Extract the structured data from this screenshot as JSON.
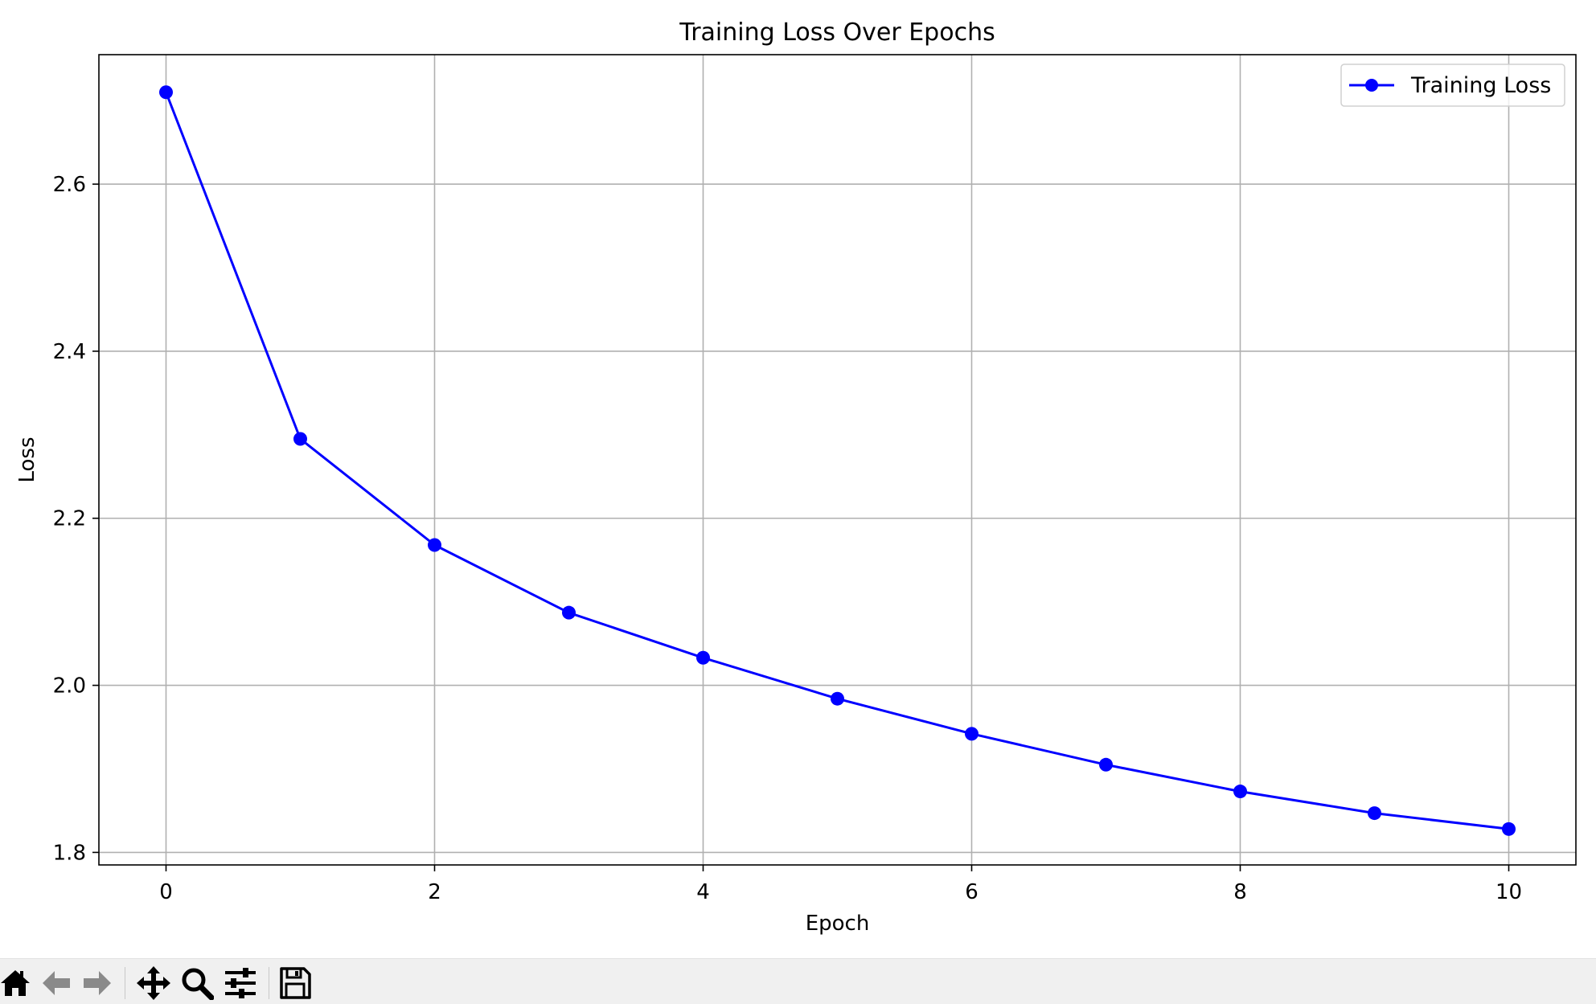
{
  "chart_data": {
    "type": "line",
    "title": "Training Loss Over Epochs",
    "xlabel": "Epoch",
    "ylabel": "Loss",
    "xlim": [
      -0.5,
      10.5
    ],
    "ylim": [
      1.785,
      2.755
    ],
    "xticks": [
      0,
      2,
      4,
      6,
      8,
      10
    ],
    "yticks": [
      1.8,
      2.0,
      2.2,
      2.4,
      2.6
    ],
    "xtick_labels": [
      "0",
      "2",
      "4",
      "6",
      "8",
      "10"
    ],
    "ytick_labels": [
      "1.8",
      "2.0",
      "2.2",
      "2.4",
      "2.6"
    ],
    "grid": true,
    "legend_position": "top-right",
    "series": [
      {
        "name": "Training Loss",
        "color": "#0000ff",
        "marker": "circle",
        "x": [
          0,
          1,
          2,
          3,
          4,
          5,
          6,
          7,
          8,
          9,
          10
        ],
        "y": [
          2.71,
          2.295,
          2.168,
          2.087,
          2.033,
          1.984,
          1.942,
          1.905,
          1.873,
          1.847,
          1.828
        ]
      }
    ]
  },
  "toolbar": {
    "buttons": [
      {
        "name": "home-button",
        "icon": "home-icon"
      },
      {
        "name": "back-button",
        "icon": "arrow-left-icon"
      },
      {
        "name": "forward-button",
        "icon": "arrow-right-icon"
      },
      {
        "name": "pan-button",
        "icon": "move-icon"
      },
      {
        "name": "zoom-button",
        "icon": "magnifier-icon"
      },
      {
        "name": "configure-subplots-button",
        "icon": "sliders-icon"
      },
      {
        "name": "save-button",
        "icon": "floppy-disk-icon"
      }
    ]
  }
}
